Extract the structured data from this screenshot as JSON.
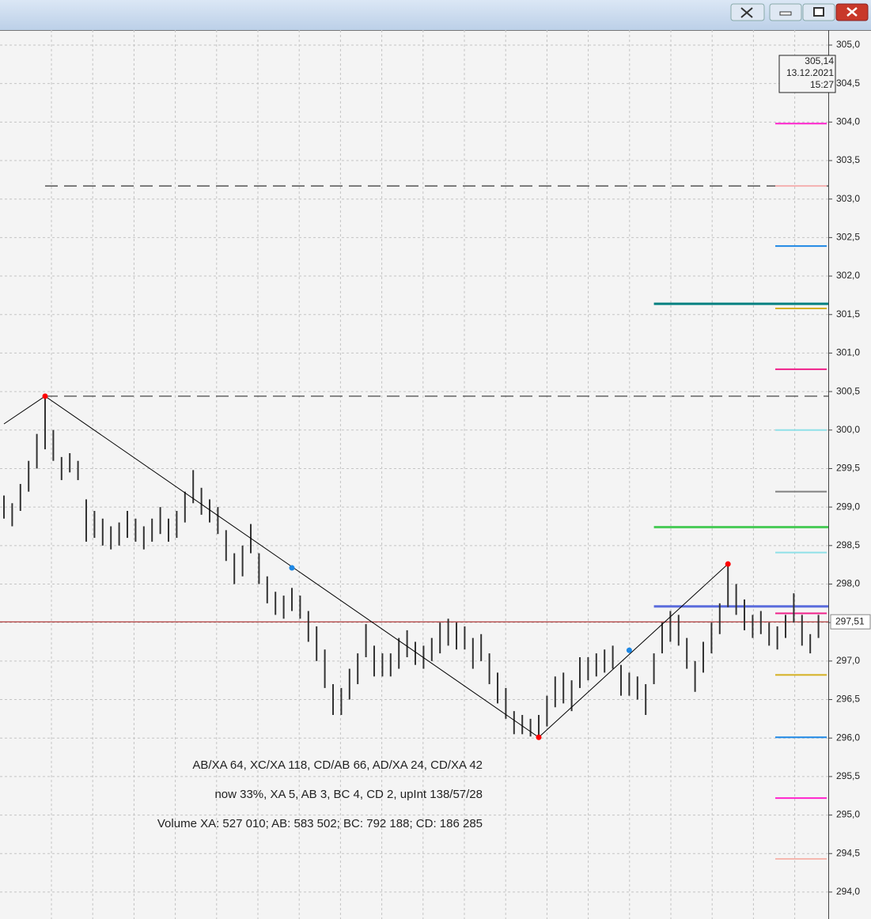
{
  "chart_data": {
    "type": "ohlc",
    "bars": {
      "high": [
        299.15,
        299.05,
        299.3,
        299.6,
        299.95,
        300.44,
        300.0,
        299.65,
        299.7,
        299.6,
        299.1,
        298.95,
        298.85,
        298.75,
        298.8,
        298.95,
        298.85,
        298.75,
        298.85,
        299.0,
        298.85,
        298.95,
        299.2,
        299.48,
        299.25,
        299.1,
        299.0,
        298.7,
        298.4,
        298.5,
        298.78,
        298.4,
        298.1,
        297.9,
        297.85,
        297.95,
        297.85,
        297.65,
        297.45,
        297.15,
        296.7,
        296.65,
        296.9,
        297.1,
        297.48,
        297.2,
        297.1,
        297.1,
        297.3,
        297.4,
        297.25,
        297.2,
        297.3,
        297.5,
        297.55,
        297.5,
        297.45,
        297.3,
        297.35,
        297.1,
        296.85,
        296.65,
        296.35,
        296.3,
        296.25,
        296.3,
        296.55,
        296.8,
        296.85,
        296.75,
        297.05,
        297.05,
        297.1,
        297.15,
        297.2,
        296.95,
        296.85,
        296.8,
        296.7,
        297.1,
        297.5,
        297.65,
        297.6,
        297.3,
        297.0,
        297.25,
        297.5,
        297.75,
        298.26,
        298.0,
        297.8,
        297.6,
        297.65,
        297.5,
        297.45,
        297.6,
        297.88,
        297.6,
        297.35,
        297.6
      ],
      "low": [
        298.85,
        298.75,
        298.95,
        299.2,
        299.5,
        299.75,
        299.6,
        299.35,
        299.45,
        299.35,
        298.55,
        298.6,
        298.5,
        298.45,
        298.5,
        298.6,
        298.55,
        298.45,
        298.55,
        298.65,
        298.55,
        298.6,
        298.8,
        299.05,
        298.9,
        298.8,
        298.65,
        298.3,
        298.0,
        298.1,
        298.4,
        298.0,
        297.75,
        297.6,
        297.55,
        297.65,
        297.55,
        297.25,
        297.0,
        296.65,
        296.3,
        296.3,
        296.5,
        296.7,
        297.05,
        296.8,
        296.8,
        296.8,
        296.9,
        297.05,
        296.95,
        296.9,
        297.0,
        297.1,
        297.2,
        297.15,
        297.15,
        296.9,
        297.0,
        296.7,
        296.45,
        296.25,
        296.05,
        296.05,
        296.02,
        296.01,
        296.15,
        296.4,
        296.45,
        296.35,
        296.65,
        296.75,
        296.8,
        296.85,
        296.9,
        296.55,
        296.55,
        296.5,
        296.3,
        296.7,
        297.1,
        297.25,
        297.2,
        296.9,
        296.6,
        296.85,
        297.1,
        297.35,
        297.7,
        297.6,
        297.4,
        297.3,
        297.35,
        297.2,
        297.15,
        297.3,
        297.5,
        297.2,
        297.1,
        297.3
      ],
      "color": "#333333"
    },
    "zigzag": {
      "x": [
        0,
        5,
        65,
        88
      ],
      "y": [
        300.08,
        300.44,
        296.01,
        298.26
      ],
      "color": "#000000",
      "pivot_color": "#ff0000"
    },
    "midpoints": {
      "x": [
        35,
        76
      ],
      "y": [
        298.21,
        297.14
      ],
      "color": "#1e88e5"
    },
    "lines": [
      {
        "price": 303.17,
        "color": "#333333",
        "from": 5,
        "dashed": true,
        "width": 1.2
      },
      {
        "price": 300.44,
        "color": "#333333",
        "from": 5,
        "dashed": true,
        "width": 1.2
      },
      {
        "price": 297.51,
        "color": "#a01010",
        "from": 0,
        "dashed": false,
        "width": 1
      },
      {
        "price": 297.71,
        "color": "#5b6cdc",
        "from": 79,
        "dashed": false,
        "width": 3
      },
      {
        "price": 301.64,
        "color": "#008080",
        "from": 79,
        "dashed": false,
        "width": 3
      },
      {
        "price": 298.74,
        "color": "#4ccc5a",
        "from": 79,
        "dashed": false,
        "width": 3
      }
    ],
    "levels": [
      {
        "price": 303.98,
        "color": "#ff22cc"
      },
      {
        "price": 303.17,
        "color": "#f5b0b0"
      },
      {
        "price": 302.39,
        "color": "#1e88e5"
      },
      {
        "price": 301.58,
        "color": "#d4b020"
      },
      {
        "price": 300.79,
        "color": "#f0208a"
      },
      {
        "price": 300.0,
        "color": "#8fe0e8"
      },
      {
        "price": 299.2,
        "color": "#808080"
      },
      {
        "price": 298.41,
        "color": "#8fe0e8"
      },
      {
        "price": 297.62,
        "color": "#f0208a"
      },
      {
        "price": 296.82,
        "color": "#d4b020"
      },
      {
        "price": 296.01,
        "color": "#1e88e5"
      },
      {
        "price": 295.22,
        "color": "#ff22cc"
      },
      {
        "price": 294.43,
        "color": "#f5b8b0"
      }
    ],
    "ylim": [
      293.65,
      305.195
    ],
    "yticks": [
      {
        "value": 294.0,
        "label": "294,0"
      },
      {
        "value": 294.5,
        "label": "294,5"
      },
      {
        "value": 295.0,
        "label": "295,0"
      },
      {
        "value": 295.5,
        "label": "295,5"
      },
      {
        "value": 296.0,
        "label": "296,0"
      },
      {
        "value": 296.5,
        "label": "296,5"
      },
      {
        "value": 297.0,
        "label": "297,0"
      },
      {
        "value": 297.5,
        "label": "297,5"
      },
      {
        "value": 298.0,
        "label": "298,0"
      },
      {
        "value": 298.5,
        "label": "298,5"
      },
      {
        "value": 299.0,
        "label": "299,0"
      },
      {
        "value": 299.5,
        "label": "299,5"
      },
      {
        "value": 300.0,
        "label": "300,0"
      },
      {
        "value": 300.5,
        "label": "300,5"
      },
      {
        "value": 301.0,
        "label": "301,0"
      },
      {
        "value": 301.5,
        "label": "301,5"
      },
      {
        "value": 302.0,
        "label": "302,0"
      },
      {
        "value": 302.5,
        "label": "302,5"
      },
      {
        "value": 303.0,
        "label": "303,0"
      },
      {
        "value": 303.5,
        "label": "303,5"
      },
      {
        "value": 304.0,
        "label": "304,0"
      },
      {
        "value": 304.5,
        "label": "304,5"
      },
      {
        "value": 305.0,
        "label": "305,0"
      }
    ],
    "grid": true,
    "price_tag": {
      "value": 297.51,
      "label": "297,51"
    },
    "cursor_info": {
      "price": "305,14",
      "date": "13.12.2021",
      "time": "15:27"
    },
    "annotations": [
      "AB/XA 64, XC/XA 118, CD/AB 66, AD/XA 24, CD/XA 42",
      "now 33%, XA 5, AB 3, BC 4, CD 2, upInt 138/57/28",
      "Volume XA: 527 010; AB: 583 502; BC: 792 188; CD: 186 285"
    ]
  }
}
